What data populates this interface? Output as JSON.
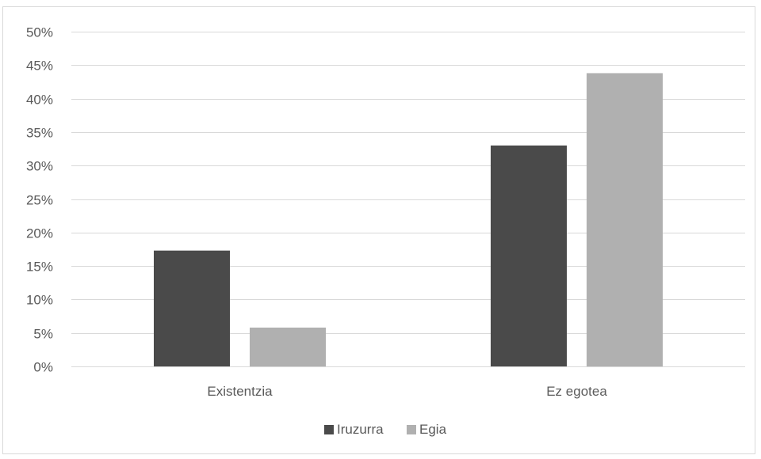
{
  "chart_data": {
    "type": "bar",
    "title": "",
    "xlabel": "",
    "ylabel": "",
    "categories": [
      "Existentzia",
      "Ez egotea"
    ],
    "series": [
      {
        "name": "Iruzurra",
        "color": "#4a4a4a",
        "values": [
          17.3,
          33.0
        ]
      },
      {
        "name": "Egia",
        "color": "#b0b0b0",
        "values": [
          5.8,
          43.8
        ]
      }
    ],
    "ylim": [
      0,
      50
    ],
    "yticks": [
      0,
      5,
      10,
      15,
      20,
      25,
      30,
      35,
      40,
      45,
      50
    ],
    "ytick_labels": [
      "0%",
      "5%",
      "10%",
      "15%",
      "20%",
      "25%",
      "30%",
      "35%",
      "40%",
      "45%",
      "50%"
    ],
    "grid": true,
    "legend_position": "bottom"
  }
}
